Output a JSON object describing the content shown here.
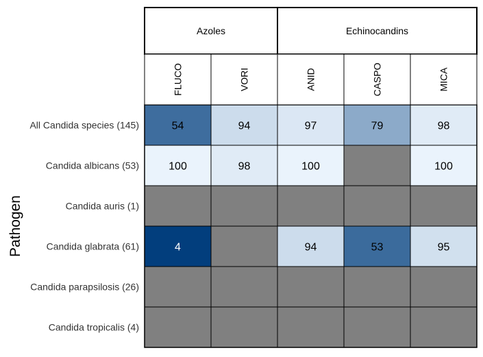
{
  "chart_data": {
    "type": "heatmap",
    "ylabel": "Pathogen",
    "groups": [
      {
        "label": "Azoles",
        "span": 2
      },
      {
        "label": "Echinocandins",
        "span": 3
      }
    ],
    "columns": [
      "FLUCO",
      "VORI",
      "ANID",
      "CASPO",
      "MICA"
    ],
    "rows": [
      "All Candida species (145)",
      "Candida albicans (53)",
      "Candida auris (1)",
      "Candida glabrata (61)",
      "Candida parapsilosis (26)",
      "Candida tropicalis (4)"
    ],
    "values": [
      [
        54,
        94,
        97,
        79,
        98
      ],
      [
        100,
        98,
        100,
        null,
        100
      ],
      [
        null,
        null,
        null,
        null,
        null
      ],
      [
        4,
        null,
        94,
        53,
        95
      ],
      [
        null,
        null,
        null,
        null,
        null
      ],
      [
        null,
        null,
        null,
        null,
        null
      ]
    ],
    "colors": {
      "missing": "#808080",
      "low": "#023e7d",
      "high": "#eaf3fc",
      "grid": "#000000",
      "text_dark": "#000000",
      "text_light": "#ffffff"
    },
    "value_range": [
      0,
      100
    ]
  }
}
